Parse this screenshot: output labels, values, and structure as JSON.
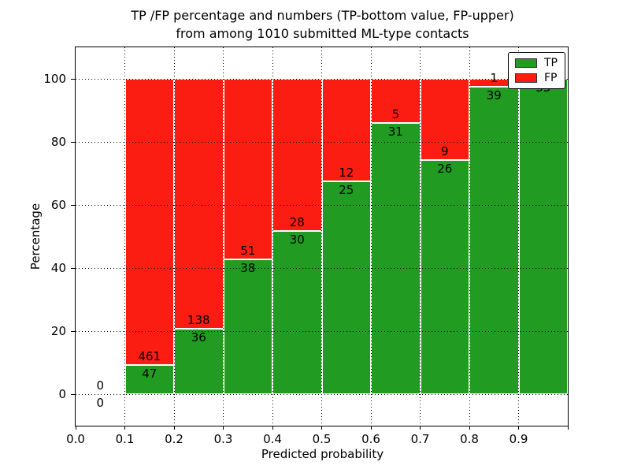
{
  "chart_data": {
    "type": "bar",
    "stacked": true,
    "unit": "percent",
    "title_line1": "TP /FP percentage and numbers (TP-bottom value, FP-upper)",
    "title_line2": "from among 1010 submitted ML-type contacts",
    "xlabel": "Predicted probability",
    "ylabel": "Percentage",
    "xlim": [
      0.0,
      1.0
    ],
    "ylim": [
      -10,
      110
    ],
    "grid": true,
    "legend_position": "upper right",
    "legend": [
      {
        "label": "TP",
        "color": "#229b22"
      },
      {
        "label": "FP",
        "color": "#fb1d12"
      }
    ],
    "colors": {
      "tp": "#229b22",
      "fp": "#fb1d12"
    },
    "x_ticks": [
      {
        "v": 0.0,
        "label": "0.0"
      },
      {
        "v": 0.1,
        "label": "0.1"
      },
      {
        "v": 0.2,
        "label": "0.2"
      },
      {
        "v": 0.3,
        "label": "0.3"
      },
      {
        "v": 0.4,
        "label": "0.4"
      },
      {
        "v": 0.5,
        "label": "0.5"
      },
      {
        "v": 0.6,
        "label": "0.6"
      },
      {
        "v": 0.7,
        "label": "0.7"
      },
      {
        "v": 0.8,
        "label": "0.8"
      },
      {
        "v": 0.9,
        "label": "0.9"
      },
      {
        "v": 1.0,
        "label": ""
      }
    ],
    "y_ticks": [
      {
        "v": 0,
        "label": "0"
      },
      {
        "v": 20,
        "label": "20"
      },
      {
        "v": 40,
        "label": "40"
      },
      {
        "v": 60,
        "label": "60"
      },
      {
        "v": 80,
        "label": "80"
      },
      {
        "v": 100,
        "label": "100"
      }
    ],
    "grid_x": [
      0.1,
      0.2,
      0.3,
      0.4,
      0.5,
      0.6,
      0.7,
      0.8,
      0.9
    ],
    "bins": [
      {
        "range": [
          0.0,
          0.1
        ],
        "tp": 0,
        "fp": 0
      },
      {
        "range": [
          0.1,
          0.2
        ],
        "tp": 47,
        "fp": 461
      },
      {
        "range": [
          0.2,
          0.3
        ],
        "tp": 36,
        "fp": 138
      },
      {
        "range": [
          0.3,
          0.4
        ],
        "tp": 38,
        "fp": 51
      },
      {
        "range": [
          0.4,
          0.5
        ],
        "tp": 30,
        "fp": 28
      },
      {
        "range": [
          0.5,
          0.6
        ],
        "tp": 25,
        "fp": 12
      },
      {
        "range": [
          0.6,
          0.7
        ],
        "tp": 31,
        "fp": 5
      },
      {
        "range": [
          0.7,
          0.8
        ],
        "tp": 26,
        "fp": 9
      },
      {
        "range": [
          0.8,
          0.9
        ],
        "tp": 39,
        "fp": 1
      },
      {
        "range": [
          0.9,
          1.0
        ],
        "tp": 33,
        "fp": 0
      }
    ]
  }
}
